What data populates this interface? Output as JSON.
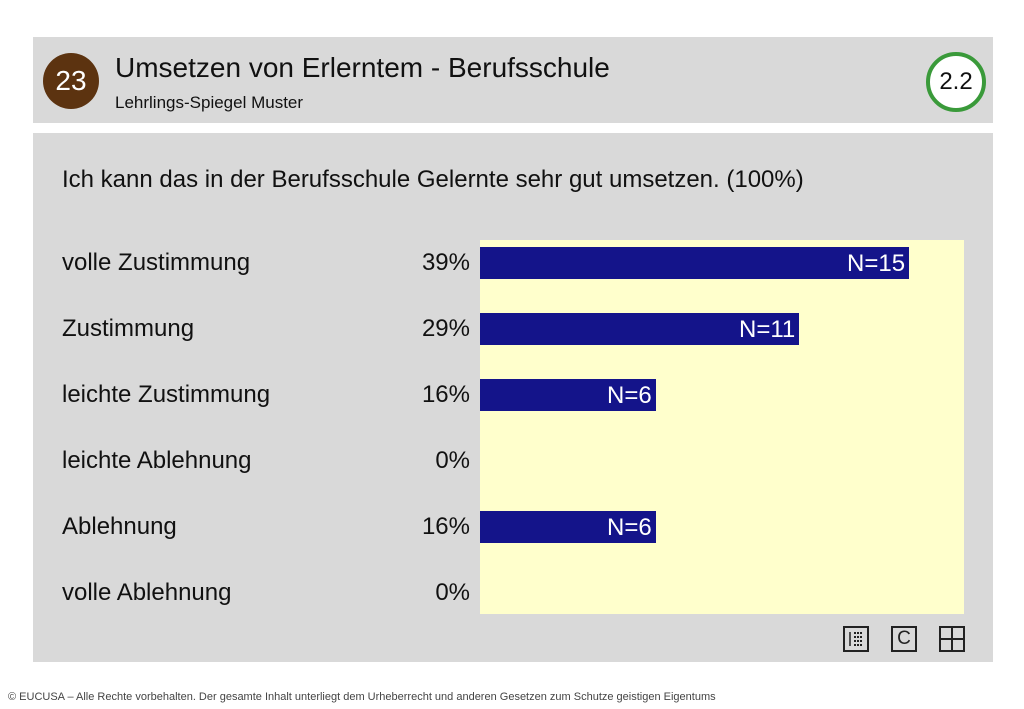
{
  "header": {
    "slide_number": "23",
    "title": "Umsetzen von Erlerntem - Berufsschule",
    "subtitle": "Lehrlings-Spiegel Muster",
    "section_number": "2.2"
  },
  "question": "Ich kann das in der Berufsschule Gelernte sehr gut umsetzen. (100%)",
  "chart_data": {
    "type": "bar",
    "orientation": "horizontal",
    "categories": [
      "volle Zustimmung",
      "Zustimmung",
      "leichte Zustimmung",
      "leichte Ablehnung",
      "Ablehnung",
      "volle Ablehnung"
    ],
    "percent_labels": [
      "39%",
      "29%",
      "16%",
      "0%",
      "16%",
      "0%"
    ],
    "values": [
      39,
      29,
      16,
      0,
      16,
      0
    ],
    "count_labels": [
      "N=15",
      "N=11",
      "N=6",
      "",
      "N=6",
      ""
    ],
    "xlim": [
      0,
      44
    ],
    "bar_color": "#14148a",
    "plot_background": "#ffffcc"
  },
  "toolbar": {
    "icons": [
      "list-icon",
      "c-icon",
      "grid-icon"
    ],
    "c_label": "C"
  },
  "footer": {
    "copyright": "© EUCUSA – Alle Rechte vorbehalten. Der gesamte Inhalt unterliegt dem Urheberrecht und anderen Gesetzen zum Schutze geistigen Eigentums"
  }
}
